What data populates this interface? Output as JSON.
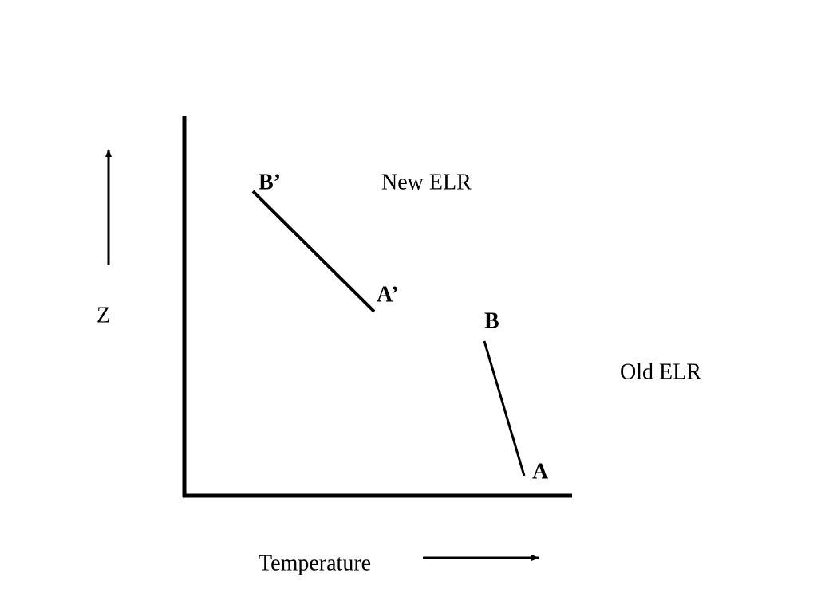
{
  "axes": {
    "y_label": "Z",
    "x_label": "Temperature"
  },
  "lines": [
    {
      "name": "New ELR",
      "top": "B’",
      "bottom": "A’"
    },
    {
      "name": "Old ELR",
      "top": "B",
      "bottom": "A"
    }
  ]
}
